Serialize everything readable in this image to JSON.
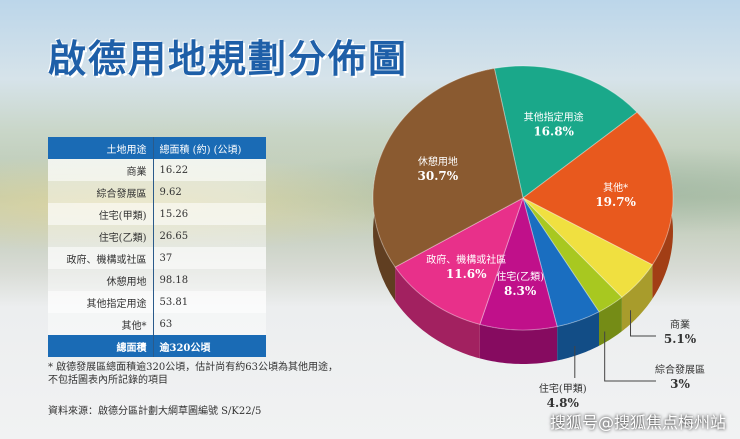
{
  "title": "啟德用地規劃分佈圖",
  "table": {
    "headers": [
      "土地用途",
      "總面積 (約) (公頃)"
    ],
    "rows": [
      [
        "商業",
        "16.22"
      ],
      [
        "綜合發展區",
        "9.62"
      ],
      [
        "住宅(甲類)",
        "15.26"
      ],
      [
        "住宅(乙類)",
        "26.65"
      ],
      [
        "政府、機構或社區",
        "37"
      ],
      [
        "休憩用地",
        "98.18"
      ],
      [
        "其他指定用途",
        "53.81"
      ],
      [
        "其他*",
        "63"
      ]
    ],
    "total": [
      "總面積",
      "逾320公頃"
    ]
  },
  "note": "* 啟德發展區總面積逾320公頃，估計尚有約63公頃為其他用途，不包括圖表內所記錄的項目",
  "source": "資料來源：啟德分區計劃大綱草圖編號 S/K22/5",
  "watermark": "搜狐号@搜狐焦点梅州站",
  "chart_data": {
    "type": "pie",
    "slices": [
      {
        "label": "其他指定用途",
        "value": 16.8,
        "pct": "16.8%",
        "color": "#1aa88a"
      },
      {
        "label": "其他*",
        "value": 19.7,
        "pct": "19.7%",
        "color": "#e8591e"
      },
      {
        "label": "商業",
        "value": 5.1,
        "pct": "5.1%",
        "color": "#f0e040"
      },
      {
        "label": "綜合發展區",
        "value": 3,
        "pct": "3%",
        "color": "#a8c820"
      },
      {
        "label": "住宅(甲類)",
        "value": 4.8,
        "pct": "4.8%",
        "color": "#1a6ec0"
      },
      {
        "label": "住宅(乙類)",
        "value": 8.3,
        "pct": "8.3%",
        "color": "#c0108a"
      },
      {
        "label": "政府、機構或社區",
        "value": 11.6,
        "pct": "11.6%",
        "color": "#e8308a"
      },
      {
        "label": "休憩用地",
        "value": 30.7,
        "pct": "30.7%",
        "color": "#8a5a30"
      }
    ]
  }
}
